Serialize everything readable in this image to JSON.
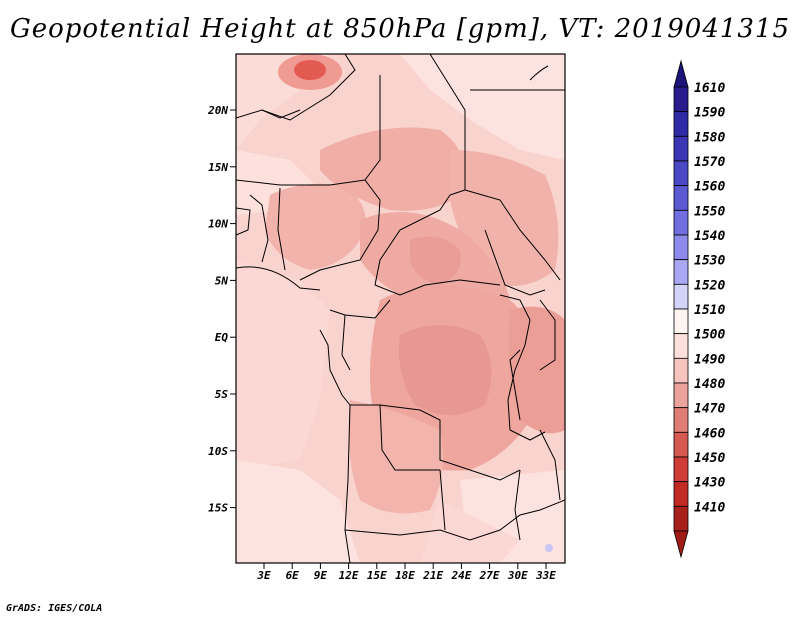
{
  "title": "Geopotential Height at 850hPa [gpm], VT: 2019041315",
  "credit": "GrADS: IGES/COLA",
  "map": {
    "lat_ticks": [
      "20N",
      "15N",
      "10N",
      "5N",
      "EQ",
      "5S",
      "10S",
      "15S"
    ],
    "lon_ticks": [
      "3E",
      "6E",
      "9E",
      "12E",
      "15E",
      "18E",
      "21E",
      "24E",
      "27E",
      "30E",
      "33E"
    ]
  },
  "colorbar": {
    "levels": [
      {
        "label": "1610",
        "color": "#2a1c8c"
      },
      {
        "label": "1590",
        "color": "#2f2aa6"
      },
      {
        "label": "1580",
        "color": "#3a36b4"
      },
      {
        "label": "1570",
        "color": "#4a48c4"
      },
      {
        "label": "1560",
        "color": "#5b5ad2"
      },
      {
        "label": "1550",
        "color": "#716fe0"
      },
      {
        "label": "1540",
        "color": "#8c8aea"
      },
      {
        "label": "1530",
        "color": "#aaa8f2"
      },
      {
        "label": "1520",
        "color": "#d4d3f8"
      },
      {
        "label": "1510",
        "color": "#fff4f2"
      },
      {
        "label": "1500",
        "color": "#fde0dc"
      },
      {
        "label": "1490",
        "color": "#f7c3bd"
      },
      {
        "label": "1480",
        "color": "#eca39c"
      },
      {
        "label": "1470",
        "color": "#e07e76"
      },
      {
        "label": "1460",
        "color": "#d65a52"
      },
      {
        "label": "1450",
        "color": "#cf3d36"
      },
      {
        "label": "1430",
        "color": "#c22a24"
      },
      {
        "label": "1410",
        "color": "#a8201b"
      }
    ],
    "top_arrow_color": "#1c1478",
    "bottom_arrow_color": "#a01c18"
  }
}
